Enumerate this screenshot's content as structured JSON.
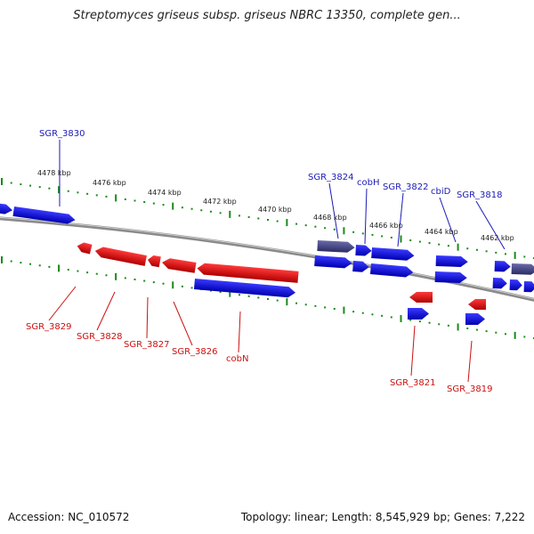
{
  "title": "Streptomyces griseus subsp. griseus NBRC 13350, complete gen...",
  "footer": {
    "accession": "Accession: NC_010572",
    "summary": "Topology: linear; Length: 8,545,929 bp; Genes: 7,222"
  },
  "scale_labels": [
    "4478 kbp",
    "4476 kbp",
    "4474 kbp",
    "4472 kbp",
    "4470 kbp",
    "4468 kbp",
    "4466 kbp",
    "4464 kbp",
    "4462 kbp"
  ],
  "gene_labels": {
    "forward": [
      "SGR_3830",
      "SGR_3824",
      "cobH",
      "SGR_3822",
      "cbiD",
      "SGR_3818"
    ],
    "reverse": [
      "SGR_3829",
      "SGR_3828",
      "SGR_3827",
      "SGR_3826",
      "cobN",
      "SGR_3821",
      "SGR_3819"
    ]
  },
  "colors": {
    "forward_gene": "#1010e0",
    "reverse_gene": "#e01010",
    "highlight_gene": "#4a4a8a",
    "tick": "#1a8a1a",
    "backbone": "#8a8a8a"
  }
}
